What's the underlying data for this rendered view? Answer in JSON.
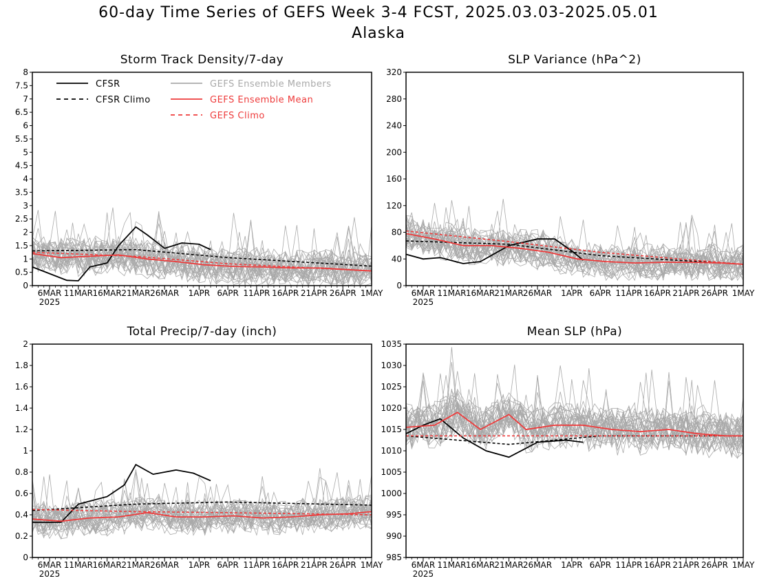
{
  "title": "60-day Time Series of GEFS Week 3-4 FCST, 2025.03.03-2025.05.01",
  "subtitle": "Alaska",
  "colors": {
    "cfsr": "#000000",
    "members": "#a9a9a9",
    "gefs": "#ee3a3a"
  },
  "legend": {
    "cfsr": "CFSR",
    "cfsr_climo": "CFSR Climo",
    "members": "GEFS Ensemble Members",
    "gefs_mean": "GEFS Ensemble Mean",
    "gefs_climo": "GEFS Climo"
  },
  "x_tick_labels": [
    "6MAR",
    "11MAR",
    "16MAR",
    "21MAR",
    "26MAR",
    "1APR",
    "6APR",
    "11APR",
    "16APR",
    "21APR",
    "26APR",
    "1MAY"
  ],
  "x_year_label": "2025",
  "chart_data": [
    {
      "type": "line",
      "title": "Storm Track Density/7-day",
      "x_range": [
        "2025-03-03",
        "2025-05-01"
      ],
      "ylim": [
        0,
        8
      ],
      "yticks": [
        "0",
        "0.5",
        "1",
        "1.5",
        "2",
        "2.5",
        "3",
        "3.5",
        "4",
        "4.5",
        "5",
        "5.5",
        "6",
        "6.5",
        "7",
        "7.5",
        "8"
      ],
      "ensemble_members": {
        "count": 30,
        "center_series": "GEFS Ensemble Mean",
        "spread": 0.6,
        "lowest": 0
      },
      "series": [
        {
          "name": "CFSR",
          "style": "solid",
          "color": "#000000",
          "x": [
            "2025-03-03",
            "2025-03-06",
            "2025-03-09",
            "2025-03-11",
            "2025-03-13",
            "2025-03-16",
            "2025-03-18",
            "2025-03-21",
            "2025-03-23",
            "2025-03-26",
            "2025-03-29",
            "2025-04-01",
            "2025-04-03"
          ],
          "values": [
            0.7,
            0.45,
            0.2,
            0.18,
            0.7,
            0.85,
            1.5,
            2.2,
            1.9,
            1.4,
            1.6,
            1.55,
            1.35
          ]
        },
        {
          "name": "CFSR Climo",
          "style": "dashed",
          "color": "#000000",
          "x": [
            "2025-03-03",
            "2025-03-21",
            "2025-04-06",
            "2025-05-01"
          ],
          "values": [
            1.3,
            1.35,
            1.05,
            0.73
          ]
        },
        {
          "name": "GEFS Ensemble Mean",
          "style": "solid",
          "color": "#ee3a3a",
          "x": [
            "2025-03-03",
            "2025-03-08",
            "2025-03-13",
            "2025-03-18",
            "2025-03-23",
            "2025-03-28",
            "2025-04-02",
            "2025-04-07",
            "2025-04-12",
            "2025-04-17",
            "2025-04-22",
            "2025-04-27",
            "2025-05-01"
          ],
          "values": [
            1.2,
            1.05,
            1.1,
            1.15,
            1.0,
            0.9,
            0.78,
            0.72,
            0.7,
            0.66,
            0.66,
            0.6,
            0.55
          ]
        },
        {
          "name": "GEFS Climo",
          "style": "dashed",
          "color": "#ee3a3a",
          "x": [
            "2025-03-03",
            "2025-03-21",
            "2025-04-06",
            "2025-05-01"
          ],
          "values": [
            1.25,
            1.1,
            0.82,
            0.55
          ]
        }
      ]
    },
    {
      "type": "line",
      "title": "SLP Variance (hPa^2)",
      "x_range": [
        "2025-03-03",
        "2025-05-01"
      ],
      "ylim": [
        0,
        320
      ],
      "yticks": [
        "0",
        "40",
        "80",
        "120",
        "160",
        "200",
        "240",
        "280",
        "320"
      ],
      "ensemble_members": {
        "count": 30,
        "center_series": "GEFS Ensemble Mean",
        "spread": 22,
        "lowest": 8
      },
      "series": [
        {
          "name": "CFSR",
          "style": "solid",
          "color": "#000000",
          "x": [
            "2025-03-03",
            "2025-03-06",
            "2025-03-09",
            "2025-03-13",
            "2025-03-16",
            "2025-03-21",
            "2025-03-26",
            "2025-03-29",
            "2025-04-01",
            "2025-04-03"
          ],
          "values": [
            47,
            40,
            42,
            33,
            36,
            60,
            70,
            70,
            52,
            38
          ]
        },
        {
          "name": "CFSR Climo",
          "style": "dashed",
          "color": "#000000",
          "x": [
            "2025-03-03",
            "2025-03-21",
            "2025-04-06",
            "2025-05-01"
          ],
          "values": [
            67,
            62,
            45,
            32
          ]
        },
        {
          "name": "GEFS Ensemble Mean",
          "style": "solid",
          "color": "#ee3a3a",
          "x": [
            "2025-03-03",
            "2025-03-08",
            "2025-03-13",
            "2025-03-18",
            "2025-03-23",
            "2025-03-28",
            "2025-04-02",
            "2025-04-07",
            "2025-04-12",
            "2025-04-17",
            "2025-04-22",
            "2025-04-27",
            "2025-05-01"
          ],
          "values": [
            78,
            70,
            60,
            60,
            56,
            50,
            40,
            36,
            34,
            35,
            35,
            34,
            32
          ]
        },
        {
          "name": "GEFS Climo",
          "style": "dashed",
          "color": "#ee3a3a",
          "x": [
            "2025-03-03",
            "2025-03-21",
            "2025-04-06",
            "2025-05-01"
          ],
          "values": [
            82,
            66,
            50,
            32
          ]
        }
      ]
    },
    {
      "type": "line",
      "title": "Total Precip/7-day (inch)",
      "x_range": [
        "2025-03-03",
        "2025-05-01"
      ],
      "ylim": [
        0,
        2
      ],
      "yticks": [
        "0",
        "0.2",
        "0.4",
        "0.6",
        "0.8",
        "1",
        "1.2",
        "1.4",
        "1.6",
        "1.8",
        "2"
      ],
      "ensemble_members": {
        "count": 30,
        "center_series": "GEFS Ensemble Mean",
        "spread": 0.13,
        "lowest": 0.1
      },
      "series": [
        {
          "name": "CFSR",
          "style": "solid",
          "color": "#000000",
          "x": [
            "2025-03-03",
            "2025-03-08",
            "2025-03-11",
            "2025-03-16",
            "2025-03-19",
            "2025-03-21",
            "2025-03-24",
            "2025-03-28",
            "2025-03-31",
            "2025-04-03"
          ],
          "values": [
            0.33,
            0.33,
            0.5,
            0.57,
            0.68,
            0.87,
            0.78,
            0.82,
            0.79,
            0.72
          ]
        },
        {
          "name": "CFSR Climo",
          "style": "dashed",
          "color": "#000000",
          "x": [
            "2025-03-03",
            "2025-03-21",
            "2025-04-06",
            "2025-05-01"
          ],
          "values": [
            0.44,
            0.5,
            0.52,
            0.49
          ]
        },
        {
          "name": "GEFS Ensemble Mean",
          "style": "solid",
          "color": "#ee3a3a",
          "x": [
            "2025-03-03",
            "2025-03-08",
            "2025-03-13",
            "2025-03-18",
            "2025-03-23",
            "2025-03-28",
            "2025-04-02",
            "2025-04-07",
            "2025-04-12",
            "2025-04-17",
            "2025-04-22",
            "2025-04-27",
            "2025-05-01"
          ],
          "values": [
            0.36,
            0.34,
            0.37,
            0.38,
            0.42,
            0.38,
            0.38,
            0.39,
            0.37,
            0.38,
            0.4,
            0.41,
            0.43
          ]
        },
        {
          "name": "GEFS Climo",
          "style": "dashed",
          "color": "#ee3a3a",
          "x": [
            "2025-03-03",
            "2025-03-21",
            "2025-04-06",
            "2025-05-01"
          ],
          "values": [
            0.45,
            0.43,
            0.42,
            0.4
          ]
        }
      ]
    },
    {
      "type": "line",
      "title": "Mean SLP (hPa)",
      "x_range": [
        "2025-03-03",
        "2025-05-01"
      ],
      "ylim": [
        985,
        1035
      ],
      "yticks": [
        "985",
        "990",
        "995",
        "1000",
        "1005",
        "1010",
        "1015",
        "1020",
        "1025",
        "1030",
        "1035"
      ],
      "ensemble_members": {
        "count": 30,
        "center_series": "GEFS Ensemble Mean",
        "spread": 4.5,
        "lowest": 985
      },
      "series": [
        {
          "name": "CFSR",
          "style": "solid",
          "color": "#000000",
          "x": [
            "2025-03-03",
            "2025-03-06",
            "2025-03-09",
            "2025-03-13",
            "2025-03-17",
            "2025-03-21",
            "2025-03-26",
            "2025-03-31",
            "2025-04-03"
          ],
          "values": [
            1014,
            1016,
            1017.5,
            1013,
            1010,
            1008.5,
            1012,
            1012.5,
            1012
          ]
        },
        {
          "name": "CFSR Climo",
          "style": "dashed",
          "color": "#000000",
          "x": [
            "2025-03-03",
            "2025-03-21",
            "2025-04-06",
            "2025-05-01"
          ],
          "values": [
            1013.5,
            1011.5,
            1013.5,
            1013.5
          ]
        },
        {
          "name": "GEFS Ensemble Mean",
          "style": "solid",
          "color": "#ee3a3a",
          "x": [
            "2025-03-03",
            "2025-03-08",
            "2025-03-12",
            "2025-03-16",
            "2025-03-21",
            "2025-03-24",
            "2025-03-29",
            "2025-04-03",
            "2025-04-08",
            "2025-04-13",
            "2025-04-18",
            "2025-04-23",
            "2025-04-28",
            "2025-05-01"
          ],
          "values": [
            1015.5,
            1016,
            1019,
            1015,
            1018.5,
            1015,
            1016,
            1016,
            1015,
            1014.5,
            1015,
            1014,
            1013.5,
            1013.5
          ]
        },
        {
          "name": "GEFS Climo",
          "style": "dashed",
          "color": "#ee3a3a",
          "x": [
            "2025-03-03",
            "2025-03-21",
            "2025-04-06",
            "2025-05-01"
          ],
          "values": [
            1013.5,
            1013.5,
            1013.5,
            1013.5
          ]
        }
      ]
    }
  ]
}
